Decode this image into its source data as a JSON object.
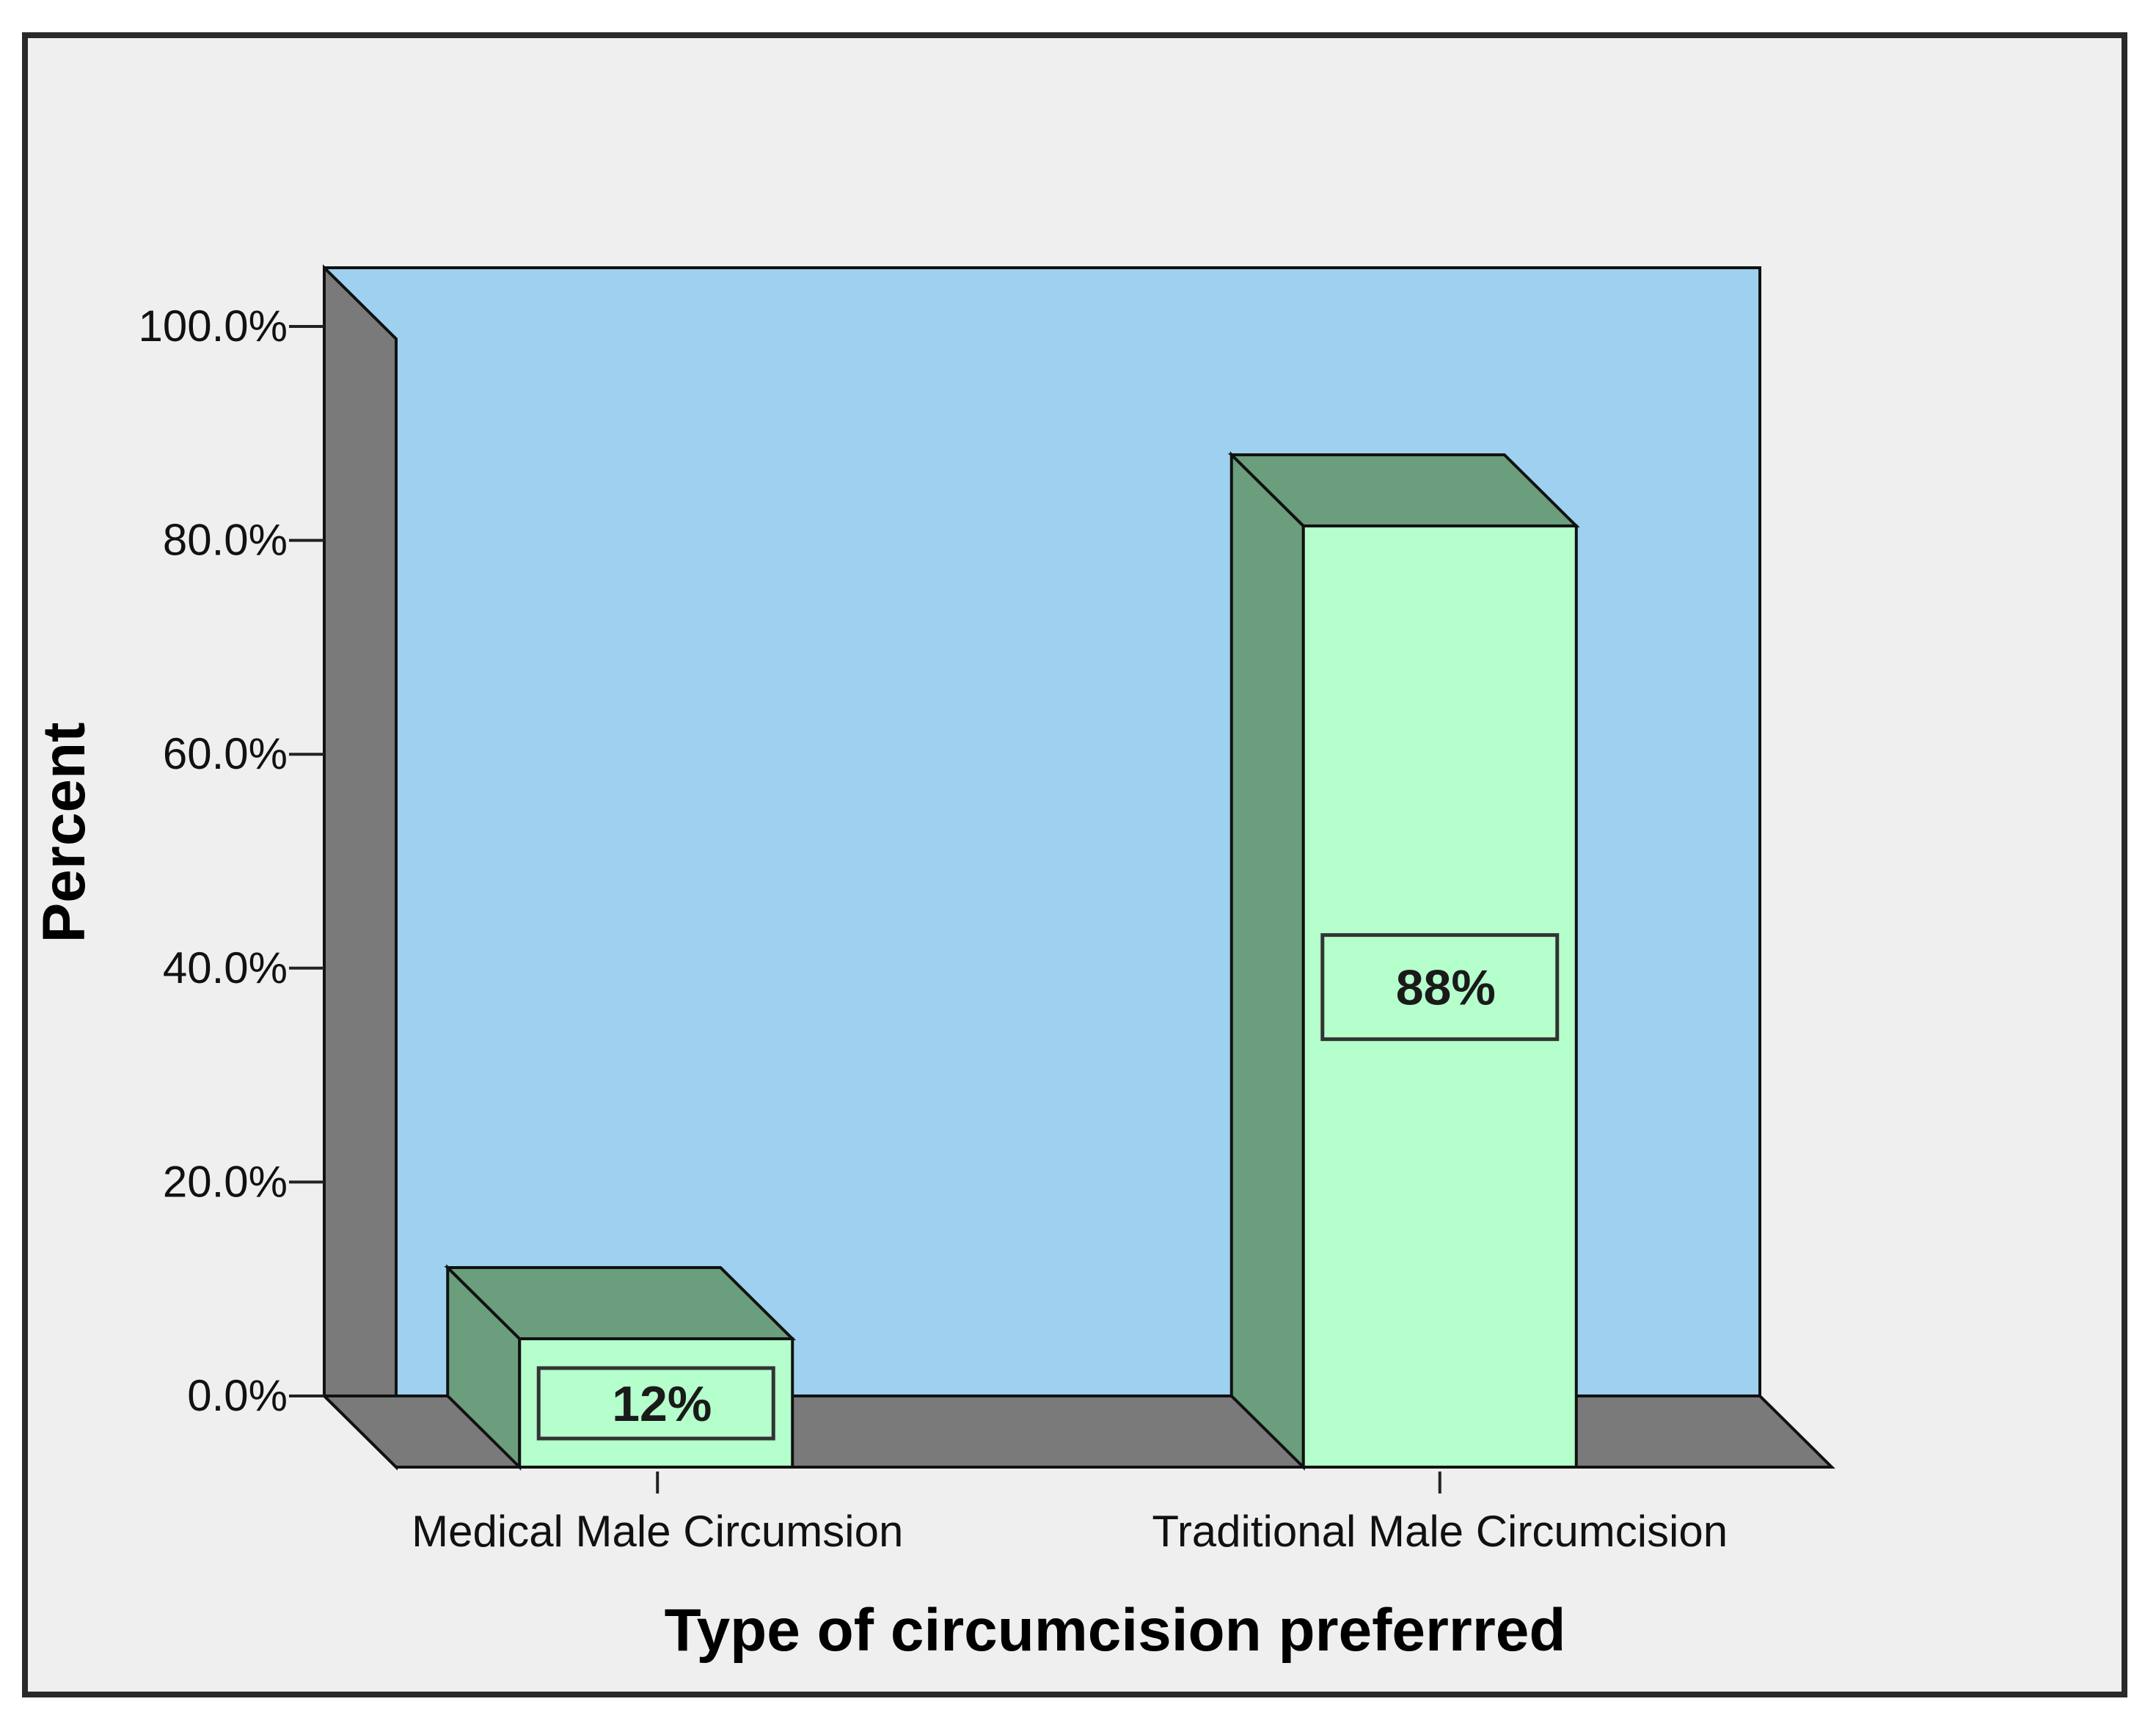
{
  "chart_data": {
    "type": "bar",
    "style": "3d",
    "categories": [
      "Medical Male Circumsion",
      "Traditional Male Circumcision"
    ],
    "values": [
      12,
      88
    ],
    "data_labels": [
      "12%",
      "88%"
    ],
    "xlabel": "Type of circumcision preferrred",
    "ylabel": "Percent",
    "ylim": [
      0,
      100
    ],
    "yticks": [
      0,
      20,
      40,
      60,
      80,
      100
    ],
    "ytick_labels": [
      "0.0%",
      "20.0%",
      "40.0%",
      "60.0%",
      "80.0%",
      "100.0%"
    ],
    "grid": false,
    "legend": "none",
    "colors": {
      "background": "#efefef",
      "plot_back_wall": "#9dd1ef",
      "side_wall": "#7a7a7a",
      "floor": "#7a7a7a",
      "bar_front": "#b4ffcc",
      "bar_top_side": "#6a9e7c",
      "outline": "#111111"
    }
  }
}
